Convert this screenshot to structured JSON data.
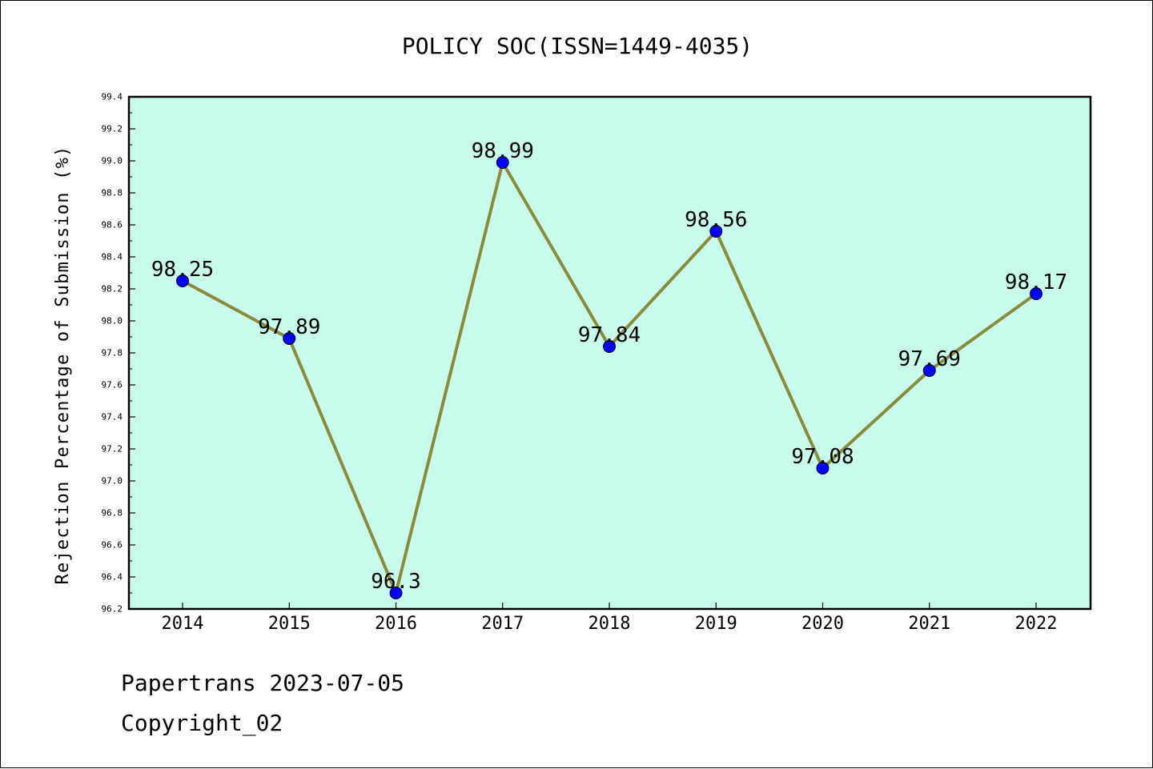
{
  "chart_data": {
    "type": "line",
    "title": "POLICY SOC(ISSN=1449-4035)",
    "xlabel": "",
    "ylabel": "Rejection Percentage of Submission (%)",
    "categories": [
      "2014",
      "2015",
      "2016",
      "2017",
      "2018",
      "2019",
      "2020",
      "2021",
      "2022"
    ],
    "values": [
      98.25,
      97.89,
      96.3,
      98.99,
      97.84,
      98.56,
      97.08,
      97.69,
      98.17
    ],
    "data_labels": [
      "98.25",
      "97.89",
      "96.3",
      "98.99",
      "97.84",
      "98.56",
      "97.08",
      "97.69",
      "98.17"
    ],
    "ylim": [
      96.2,
      99.4
    ],
    "yticks": [
      "96.2",
      "96.4",
      "96.6",
      "96.8",
      "97.0",
      "97.2",
      "97.4",
      "97.6",
      "97.8",
      "98.0",
      "98.2",
      "98.4",
      "98.6",
      "98.8",
      "99.0",
      "99.2",
      "99.4"
    ],
    "grid": false,
    "colors": {
      "plot_background": "#c7fcec",
      "line": "#8b8b3c",
      "marker": "#0000ff"
    }
  },
  "footer": {
    "line1": "Papertrans 2023-07-05",
    "line2": "Copyright_02"
  }
}
